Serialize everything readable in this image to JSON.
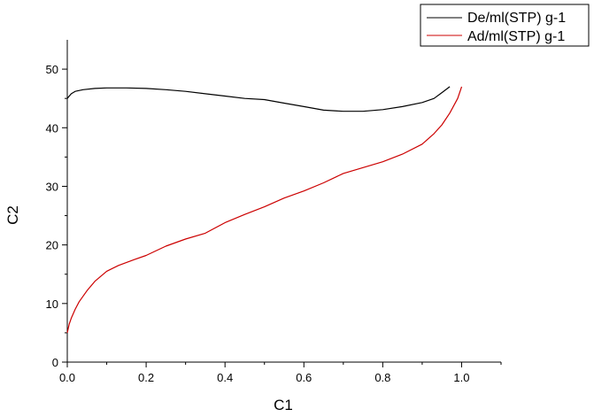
{
  "chart_data": {
    "type": "line",
    "xlabel": "C1",
    "ylabel": "C2",
    "xlim": [
      0.0,
      1.1
    ],
    "ylim": [
      0,
      55
    ],
    "x_ticks": [
      "0.0",
      "0.2",
      "0.4",
      "0.6",
      "0.8",
      "1.0"
    ],
    "y_ticks": [
      "0",
      "10",
      "20",
      "30",
      "40",
      "50"
    ],
    "x_tick_values": [
      0.0,
      0.2,
      0.4,
      0.6,
      0.8,
      1.0
    ],
    "y_tick_values": [
      0,
      10,
      20,
      30,
      40,
      50
    ],
    "grid": false,
    "legend_position": "top-right",
    "series": [
      {
        "name": "De/ml(STP) g-1",
        "color": "#000000",
        "x": [
          0.0,
          0.01,
          0.02,
          0.04,
          0.07,
          0.1,
          0.15,
          0.2,
          0.25,
          0.3,
          0.35,
          0.4,
          0.45,
          0.5,
          0.55,
          0.6,
          0.65,
          0.7,
          0.75,
          0.8,
          0.85,
          0.9,
          0.93,
          0.95,
          0.97
        ],
        "y": [
          45.0,
          45.8,
          46.2,
          46.5,
          46.7,
          46.8,
          46.8,
          46.7,
          46.5,
          46.2,
          45.8,
          45.4,
          45.0,
          44.8,
          44.2,
          43.6,
          43.0,
          42.8,
          42.8,
          43.1,
          43.6,
          44.3,
          45.0,
          46.0,
          47.0
        ]
      },
      {
        "name": "Ad/ml(STP) g-1",
        "color": "#cc0000",
        "x": [
          0.0,
          0.005,
          0.01,
          0.02,
          0.03,
          0.05,
          0.07,
          0.1,
          0.13,
          0.17,
          0.2,
          0.25,
          0.3,
          0.35,
          0.4,
          0.45,
          0.5,
          0.55,
          0.6,
          0.65,
          0.7,
          0.75,
          0.8,
          0.85,
          0.9,
          0.93,
          0.95,
          0.97,
          0.99,
          1.0
        ],
        "y": [
          5.0,
          6.5,
          7.5,
          9.0,
          10.3,
          12.2,
          13.8,
          15.5,
          16.5,
          17.5,
          18.2,
          19.8,
          21.0,
          22.0,
          23.8,
          25.2,
          26.5,
          28.0,
          29.2,
          30.6,
          32.2,
          33.2,
          34.2,
          35.5,
          37.2,
          39.0,
          40.5,
          42.5,
          45.0,
          47.0
        ]
      }
    ]
  }
}
